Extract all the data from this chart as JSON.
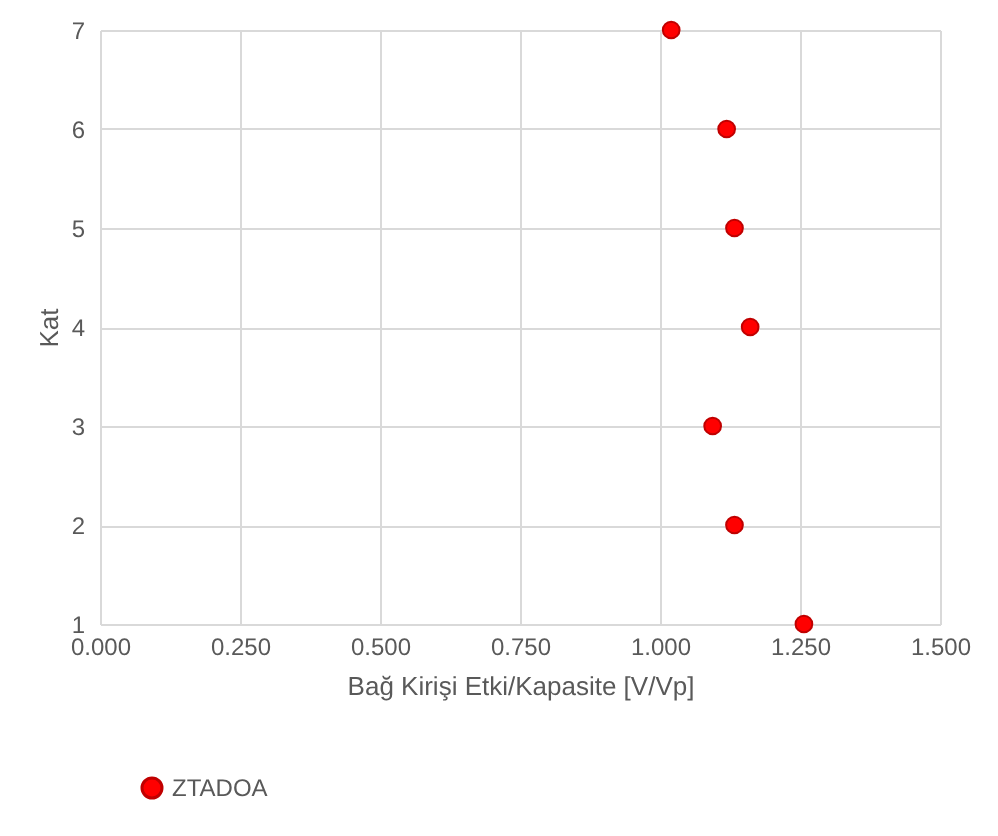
{
  "chart_data": {
    "type": "scatter",
    "xlabel": "Bağ Kirişi Etki/Kapasite [V/Vp]",
    "ylabel": "Kat",
    "xlim": [
      0,
      1.5
    ],
    "xticks": [
      {
        "value": 0,
        "label": "0.000"
      },
      {
        "value": 0.25,
        "label": "0.250"
      },
      {
        "value": 0.5,
        "label": "0.500"
      },
      {
        "value": 0.75,
        "label": "0.750"
      },
      {
        "value": 1,
        "label": "1.000"
      },
      {
        "value": 1.25,
        "label": "1.250"
      },
      {
        "value": 1.5,
        "label": "1.500"
      }
    ],
    "ylim": [
      1,
      7
    ],
    "yticks": [
      1,
      2,
      3,
      4,
      5,
      6,
      7
    ],
    "grid": true,
    "legend": "bottom",
    "marker": "circle",
    "series": [
      {
        "name": "ZTADOA",
        "color": "#ff0000",
        "x": [
          1.257,
          1.133,
          1.094,
          1.161,
          1.133,
          1.119,
          1.02
        ],
        "values": [
          1,
          2,
          3,
          4,
          5,
          6,
          7
        ]
      }
    ]
  }
}
